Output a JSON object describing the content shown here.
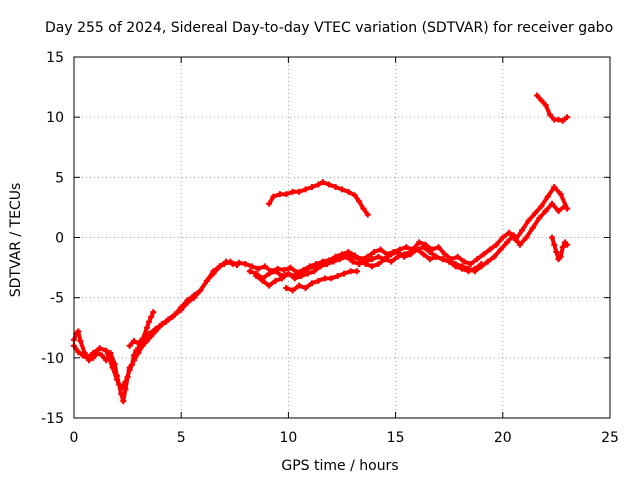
{
  "chart_data": {
    "type": "scatter",
    "title": "Day 255 of 2024, Sidereal Day-to-day VTEC variation (SDTVAR) for receiver gabo",
    "xlabel": "GPS time / hours",
    "ylabel": "SDTVAR / TECUs",
    "xlim": [
      0,
      25
    ],
    "ylim": [
      -15,
      15
    ],
    "xticks": [
      0,
      5,
      10,
      15,
      20,
      25
    ],
    "yticks": [
      -15,
      -10,
      -5,
      0,
      5,
      10,
      15
    ],
    "grid": true,
    "grid_style": "dotted",
    "series_color": "#ff0000",
    "series": [
      {
        "x": [
          0.0,
          0.1,
          0.2,
          0.3,
          0.5,
          0.7,
          0.9,
          1.1,
          1.3,
          1.5,
          1.7,
          1.9,
          2.0,
          2.1,
          2.2,
          2.3,
          2.4,
          2.5,
          2.6,
          2.7,
          2.8,
          2.9,
          3.0,
          3.2,
          3.4,
          3.5,
          3.6,
          3.7
        ],
        "y": [
          -8.5,
          -8.0,
          -7.8,
          -8.6,
          -9.6,
          -10.2,
          -10.0,
          -9.6,
          -9.8,
          -10.2,
          -9.6,
          -10.5,
          -11.5,
          -12.2,
          -13.0,
          -13.6,
          -12.6,
          -11.6,
          -10.8,
          -10.6,
          -9.8,
          -9.4,
          -9.2,
          -8.5,
          -7.5,
          -7.0,
          -6.6,
          -6.2
        ]
      },
      {
        "x": [
          0.0,
          0.2,
          0.4,
          0.6,
          0.9,
          1.2,
          1.5,
          1.8,
          2.0,
          2.2,
          2.4,
          2.6,
          2.8,
          3.0,
          3.2,
          3.4,
          3.6,
          3.8,
          4.0,
          4.3,
          4.6,
          5.0,
          5.3,
          5.6,
          5.9,
          6.2,
          6.5,
          6.8,
          7.1,
          7.4,
          7.7,
          8.0
        ],
        "y": [
          -9.0,
          -9.5,
          -9.8,
          -10.0,
          -9.6,
          -9.2,
          -9.4,
          -10.8,
          -11.8,
          -12.6,
          -12.0,
          -11.0,
          -10.2,
          -9.6,
          -9.0,
          -8.6,
          -8.2,
          -7.8,
          -7.4,
          -7.0,
          -6.6,
          -6.0,
          -5.4,
          -5.0,
          -4.4,
          -3.6,
          -2.8,
          -2.4,
          -2.0,
          -2.2,
          -2.1,
          -2.2
        ]
      },
      {
        "x": [
          2.6,
          2.8,
          3.0,
          3.2,
          3.5,
          3.8,
          4.1,
          4.4,
          4.7,
          5.0,
          5.3,
          5.6,
          5.9,
          6.2,
          6.5,
          6.8,
          7.0,
          7.3,
          7.6
        ],
        "y": [
          -9.0,
          -8.6,
          -8.8,
          -8.4,
          -8.0,
          -7.6,
          -7.2,
          -6.8,
          -6.4,
          -5.8,
          -5.2,
          -4.8,
          -4.4,
          -3.6,
          -3.0,
          -2.4,
          -2.2,
          -2.0,
          -2.3
        ]
      },
      {
        "x": [
          8.0,
          8.3,
          8.6,
          8.9,
          9.2,
          9.5,
          9.8,
          10.1,
          10.4,
          10.7,
          11.0,
          11.3,
          11.6,
          11.9,
          12.2,
          12.5,
          12.8,
          13.1,
          13.4,
          13.7,
          14.0,
          14.3,
          14.6,
          14.9,
          15.2,
          15.5,
          15.8,
          16.1,
          16.4,
          16.7,
          17.0,
          17.3,
          17.6,
          17.9,
          18.2,
          18.5,
          18.8,
          19.1,
          19.4,
          19.7,
          20.0,
          20.3,
          20.6,
          20.9,
          21.2,
          21.5,
          21.8,
          22.1,
          22.4,
          22.7,
          23.0
        ],
        "y": [
          -2.2,
          -2.4,
          -2.6,
          -2.4,
          -2.8,
          -2.6,
          -2.7,
          -2.5,
          -2.9,
          -2.7,
          -2.4,
          -2.2,
          -2.0,
          -1.9,
          -1.6,
          -1.4,
          -1.2,
          -1.5,
          -1.8,
          -1.6,
          -1.2,
          -1.0,
          -1.4,
          -1.2,
          -1.0,
          -0.8,
          -1.0,
          -0.4,
          -0.6,
          -1.0,
          -0.8,
          -1.4,
          -1.8,
          -1.6,
          -2.0,
          -2.2,
          -1.8,
          -1.4,
          -1.0,
          -0.6,
          0.0,
          0.4,
          -0.2,
          0.6,
          1.4,
          2.0,
          2.6,
          3.4,
          4.2,
          3.6,
          2.4
        ]
      },
      {
        "x": [
          8.2,
          8.5,
          8.8,
          9.1,
          9.4,
          9.7,
          10.0,
          10.3,
          10.6,
          10.9,
          11.2,
          11.5,
          11.8,
          12.1,
          12.4,
          12.7,
          13.0,
          13.3,
          13.6,
          13.9,
          14.2,
          14.5,
          14.8,
          15.1,
          15.4,
          15.7,
          16.0,
          16.3,
          16.6,
          16.9,
          17.2,
          17.5,
          17.8,
          18.1,
          18.4,
          18.7,
          19.0,
          19.3,
          19.6,
          19.9,
          20.2,
          20.5,
          20.8,
          21.1,
          21.4,
          21.7,
          22.0,
          22.3,
          22.6,
          22.9
        ],
        "y": [
          -2.8,
          -3.0,
          -3.4,
          -3.0,
          -2.8,
          -3.2,
          -3.0,
          -3.4,
          -3.2,
          -3.0,
          -2.8,
          -2.4,
          -2.2,
          -2.0,
          -1.8,
          -1.6,
          -2.0,
          -2.2,
          -2.0,
          -1.8,
          -1.6,
          -1.8,
          -2.0,
          -1.6,
          -1.4,
          -1.2,
          -1.0,
          -1.4,
          -1.8,
          -1.6,
          -1.8,
          -2.0,
          -2.2,
          -2.4,
          -2.6,
          -2.8,
          -2.4,
          -2.0,
          -1.6,
          -1.0,
          -0.4,
          0.2,
          -0.6,
          0.0,
          0.8,
          1.6,
          2.2,
          2.8,
          2.2,
          2.6
        ]
      },
      {
        "x": [
          8.5,
          8.8,
          9.1,
          9.4,
          9.7,
          10.0,
          10.3,
          10.6,
          10.9,
          11.2,
          11.5,
          11.8,
          12.1,
          12.4,
          12.7,
          13.0,
          13.3,
          13.6,
          13.9,
          14.2,
          14.5,
          14.8,
          15.1,
          15.4,
          15.7,
          16.0,
          16.3,
          16.6,
          16.9,
          17.2,
          17.5,
          17.8,
          18.1,
          18.4,
          18.7,
          19.0
        ],
        "y": [
          -3.2,
          -3.6,
          -4.0,
          -3.6,
          -3.4,
          -3.0,
          -3.2,
          -3.0,
          -2.6,
          -2.4,
          -2.2,
          -2.0,
          -1.8,
          -1.6,
          -1.4,
          -1.6,
          -1.8,
          -2.2,
          -2.4,
          -2.2,
          -1.8,
          -1.4,
          -1.2,
          -1.6,
          -1.4,
          -1.0,
          -0.8,
          -1.2,
          -1.6,
          -1.8,
          -2.0,
          -2.4,
          -2.6,
          -2.8,
          -2.6,
          -2.2
        ]
      },
      {
        "x": [
          9.9,
          10.2,
          10.5,
          10.8,
          11.1,
          11.4,
          11.7,
          12.0,
          12.3,
          12.6,
          12.9,
          13.2
        ],
        "y": [
          -4.2,
          -4.4,
          -4.0,
          -4.2,
          -3.8,
          -3.6,
          -3.4,
          -3.4,
          -3.2,
          -3.0,
          -2.8,
          -2.8
        ]
      },
      {
        "x": [
          9.1,
          9.3,
          9.6,
          9.9,
          10.2,
          10.5,
          10.8,
          11.1,
          11.4,
          11.6,
          11.9,
          12.2,
          12.5,
          12.8,
          13.1,
          13.3,
          13.5,
          13.7
        ],
        "y": [
          2.8,
          3.4,
          3.6,
          3.6,
          3.8,
          3.8,
          4.0,
          4.2,
          4.4,
          4.6,
          4.4,
          4.2,
          4.0,
          3.8,
          3.5,
          3.0,
          2.4,
          1.9
        ]
      },
      {
        "x": [
          21.6,
          21.8,
          22.0,
          22.2,
          22.4,
          22.6,
          22.8,
          23.0
        ],
        "y": [
          11.8,
          11.4,
          11.0,
          10.2,
          9.8,
          9.8,
          9.7,
          10.0
        ]
      },
      {
        "x": [
          22.3,
          22.4,
          22.5,
          22.6,
          22.7,
          22.8,
          22.9,
          23.0
        ],
        "y": [
          0.0,
          -0.6,
          -1.2,
          -1.8,
          -1.6,
          -0.8,
          -0.4,
          -0.6
        ]
      }
    ]
  }
}
